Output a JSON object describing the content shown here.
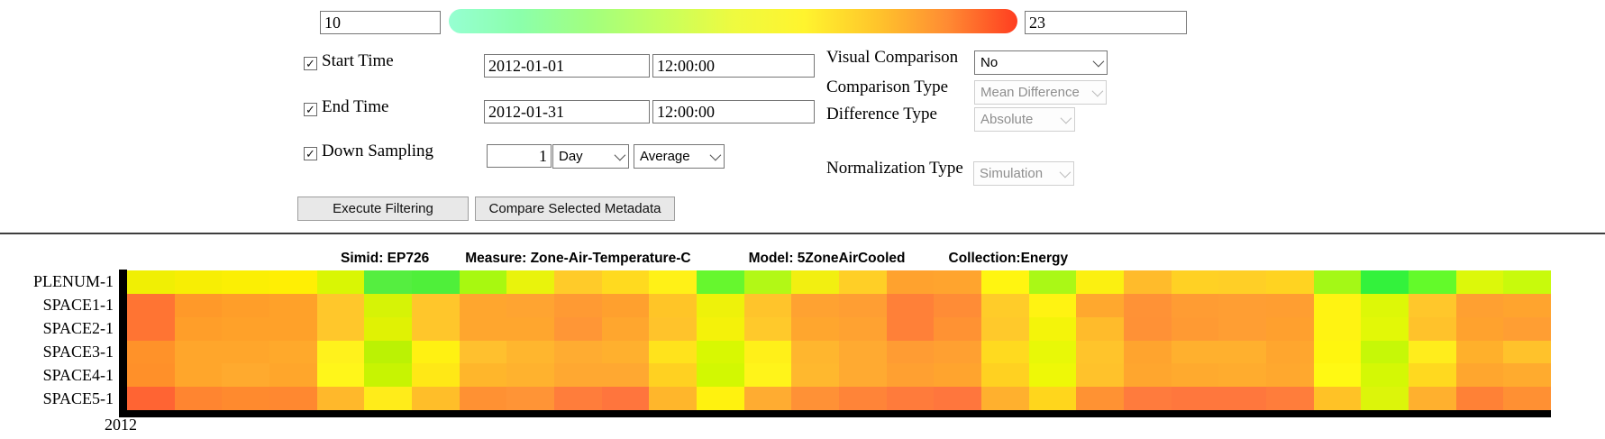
{
  "legend": {
    "min_value": "10",
    "max_value": "23",
    "gradient_colors": [
      "#96ffd2",
      "#8bffab",
      "#a2ff7e",
      "#c6ff5e",
      "#eefa40",
      "#fff42e",
      "#ffc62b",
      "#ff8c33",
      "#ff3d20"
    ]
  },
  "filters": {
    "start_time": {
      "checked": true,
      "label": "Start Time",
      "date": "2012-01-01",
      "time": "12:00:00"
    },
    "end_time": {
      "checked": true,
      "label": "End Time",
      "date": "2012-01-31",
      "time": "12:00:00"
    },
    "down_sampling": {
      "checked": true,
      "label": "Down Sampling",
      "value": "1",
      "unit": "Day",
      "method": "Average"
    },
    "visual_comparison": {
      "label": "Visual Comparison",
      "value": "No",
      "enabled": true
    },
    "comparison_type": {
      "label": "Comparison Type",
      "value": "Mean Difference",
      "enabled": false
    },
    "difference_type": {
      "label": "Difference Type",
      "value": "Absolute",
      "enabled": false
    },
    "normalization_type": {
      "label": "Normalization Type",
      "value": "Simulation",
      "enabled": false
    }
  },
  "actions": {
    "execute_filtering": "Execute Filtering",
    "compare_selected_metadata": "Compare Selected Metadata"
  },
  "chart_data": {
    "type": "heatmap",
    "title_segments": {
      "simid": "Simid: EP726",
      "measure": "Measure: Zone-Air-Temperature-C",
      "model": "Model: 5ZoneAirCooled",
      "collection": "Collection:Energy"
    },
    "rows": [
      "PLENUM-1",
      "SPACE1-1",
      "SPACE2-1",
      "SPACE3-1",
      "SPACE4-1",
      "SPACE5-1"
    ],
    "x_axis_label": "2012",
    "n_columns": 30,
    "x_range": [
      "2012-01-01",
      "2012-01-31"
    ],
    "color_scale": {
      "min": 10,
      "max": 23
    },
    "cells": [
      [
        "#f0ef04",
        "#f7ee04",
        "#fbef04",
        "#ffef04",
        "#d9f604",
        "#55ee40",
        "#4fef3a",
        "#a8f810",
        "#e9f30c",
        "#ffcb29",
        "#ffda1f",
        "#fff117",
        "#66f72e",
        "#b2f816",
        "#f2ef11",
        "#ffcf26",
        "#ffa22e",
        "#ffa42e",
        "#fff511",
        "#aaf816",
        "#fbf011",
        "#ffbb2b",
        "#ffd124",
        "#ffcf26",
        "#ffd321",
        "#a4f816",
        "#33f23c",
        "#63fa2a",
        "#dcf80a",
        "#c8fa0c"
      ],
      [
        "#ff7433",
        "#ff9929",
        "#ff9e29",
        "#ffa129",
        "#ffc72b",
        "#d6f306",
        "#ffc62b",
        "#ffa62e",
        "#ffa431",
        "#ff9a33",
        "#ffa02e",
        "#ffc527",
        "#eef20a",
        "#ffc42b",
        "#ffa231",
        "#ff9e33",
        "#ff8038",
        "#ff8c36",
        "#ffcc29",
        "#fff312",
        "#ffa82e",
        "#ff9236",
        "#ff9c33",
        "#ff9e33",
        "#ff9e31",
        "#fff312",
        "#ddf807",
        "#ffc72b",
        "#ffa031",
        "#ffa42e"
      ],
      [
        "#ff7433",
        "#ff9e29",
        "#ffa129",
        "#ffa129",
        "#ffc72b",
        "#e0f204",
        "#ffc62b",
        "#ffa62e",
        "#ffa62e",
        "#ff9636",
        "#ffa62e",
        "#ffc32b",
        "#f4f20a",
        "#ffc92b",
        "#ffa62e",
        "#ffa231",
        "#ff8038",
        "#ff9233",
        "#ffc92b",
        "#f4f40a",
        "#ffbb2b",
        "#ff9136",
        "#ff9a33",
        "#ff9e33",
        "#ffa02e",
        "#fff312",
        "#e2f807",
        "#ffc22b",
        "#ffa22e",
        "#ff9e33"
      ],
      [
        "#ff9229",
        "#ffa62b",
        "#ffa62b",
        "#ffa92b",
        "#fff21c",
        "#bbf204",
        "#fff112",
        "#ffc02e",
        "#ffb62e",
        "#ffac31",
        "#ffb02e",
        "#ffe31c",
        "#d8f802",
        "#fff019",
        "#ffb62e",
        "#ffaa31",
        "#ff9c33",
        "#ffa031",
        "#ffda1f",
        "#e8f807",
        "#ffc42b",
        "#ffa42e",
        "#ffb02e",
        "#ffb02e",
        "#ffa62e",
        "#fff60f",
        "#c6f807",
        "#ffed1c",
        "#ffb02b",
        "#ffc22b"
      ],
      [
        "#ff9029",
        "#ffa62b",
        "#ffaa2e",
        "#ffa62b",
        "#fff61a",
        "#c7f402",
        "#ffe816",
        "#ffb62b",
        "#ffb22e",
        "#ffa831",
        "#ffa831",
        "#ffd121",
        "#d2f802",
        "#fff41a",
        "#ffb82e",
        "#ffaa31",
        "#ffa031",
        "#ffa42e",
        "#ffd121",
        "#eef807",
        "#ffc22b",
        "#ffa62e",
        "#ffaa2e",
        "#ffac2e",
        "#ffa82e",
        "#fff913",
        "#d4f805",
        "#ffd91f",
        "#ffa62e",
        "#ffab2e"
      ],
      [
        "#ff6433",
        "#ff8530",
        "#ff8a2e",
        "#ff8830",
        "#ffb82b",
        "#ffec1a",
        "#ffbe29",
        "#ff9133",
        "#ff9436",
        "#ff7d3b",
        "#ff753d",
        "#ffb62b",
        "#fff20f",
        "#ffac31",
        "#ff9136",
        "#ff8438",
        "#ff7b3b",
        "#ff763d",
        "#ffb02e",
        "#ffd61c",
        "#ff9233",
        "#ff7b3d",
        "#ff773d",
        "#ff773d",
        "#ff7d3b",
        "#ffc226",
        "#dcf50a",
        "#ffb02e",
        "#ff8136",
        "#ff9033"
      ]
    ]
  }
}
